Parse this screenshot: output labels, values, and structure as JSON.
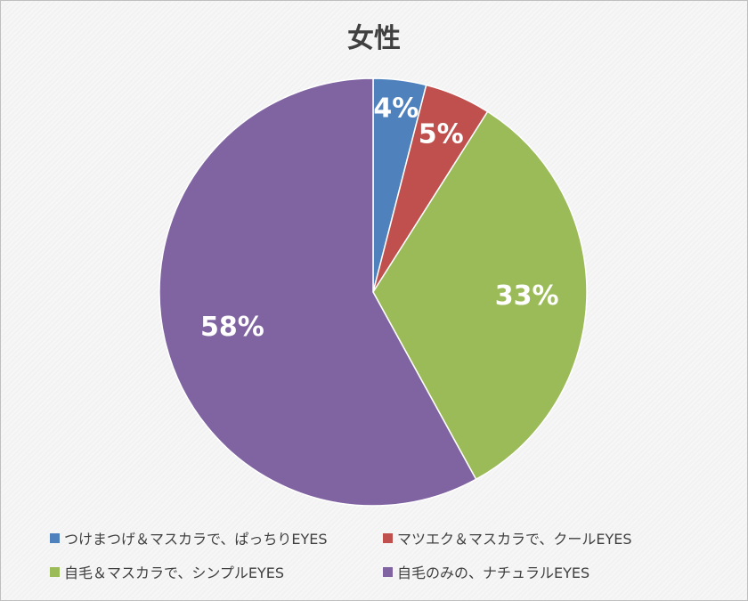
{
  "chart_data": {
    "type": "pie",
    "title": "女性",
    "categories": [
      "つけまつげ＆マスカラで、ぱっちりEYES",
      "マツエク＆マスカラで、クールEYES",
      "自毛＆マスカラで、シンプルEYES",
      "自毛のみの、ナチュラルEYES"
    ],
    "values": [
      4,
      5,
      33,
      58
    ],
    "labels": [
      "4%",
      "5%",
      "33%",
      "58%"
    ],
    "colors": [
      "#4f81bd",
      "#c0504d",
      "#9bbb59",
      "#8064a2"
    ],
    "legend_position": "bottom"
  }
}
